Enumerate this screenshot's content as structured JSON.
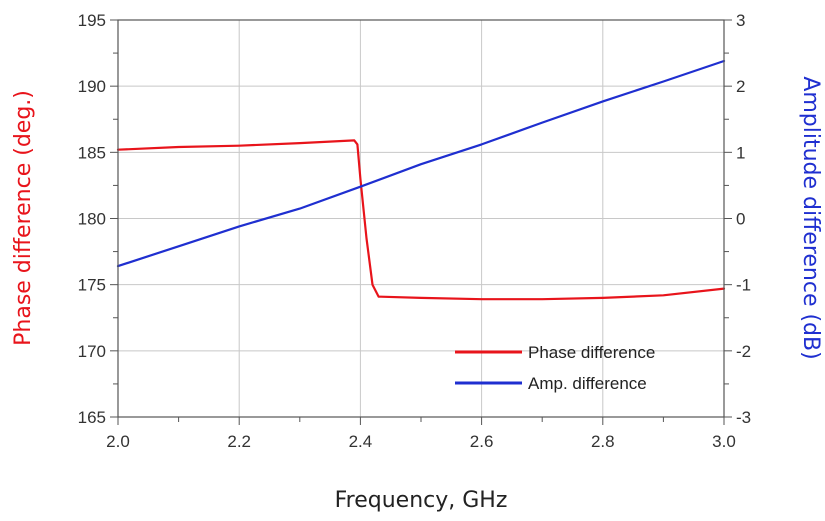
{
  "chart_data": {
    "type": "line",
    "title": "",
    "xlabel": "Frequency, GHz",
    "ylabel_left": "Phase difference (deg.)",
    "ylabel_right": "Amplitude difference (dB)",
    "xlim": [
      2.0,
      3.0
    ],
    "ylim_left": [
      165,
      195
    ],
    "ylim_right": [
      -3,
      3
    ],
    "x_ticks": [
      2.0,
      2.2,
      2.4,
      2.6,
      2.8,
      3.0
    ],
    "x_tick_labels": [
      "2.0",
      "2.2",
      "2.4",
      "2.6",
      "2.8",
      "3.0"
    ],
    "y_left_ticks": [
      165,
      170,
      175,
      180,
      185,
      190,
      195
    ],
    "y_left_tick_labels": [
      "165",
      "170",
      "175",
      "180",
      "185",
      "190",
      "195"
    ],
    "y_right_ticks": [
      -3,
      -2,
      -1,
      0,
      1,
      2,
      3
    ],
    "y_right_tick_labels": [
      "-3",
      "-2",
      "-1",
      "0",
      "1",
      "2",
      "3"
    ],
    "grid": true,
    "legend_position": "bottom-right",
    "series": [
      {
        "name": "Phase difference",
        "axis": "left",
        "color": "#e8141b",
        "x": [
          2.0,
          2.1,
          2.2,
          2.3,
          2.39,
          2.395,
          2.4,
          2.41,
          2.42,
          2.43,
          2.5,
          2.6,
          2.7,
          2.8,
          2.9,
          3.0
        ],
        "y": [
          185.2,
          185.4,
          185.5,
          185.7,
          185.9,
          185.6,
          183.0,
          178.5,
          175.0,
          174.1,
          174.0,
          173.9,
          173.9,
          174.0,
          174.2,
          174.7
        ]
      },
      {
        "name": "Amp. difference",
        "axis": "right",
        "color": "#1f2fd0",
        "x": [
          2.0,
          2.1,
          2.2,
          2.3,
          2.4,
          2.5,
          2.6,
          2.7,
          2.8,
          2.9,
          3.0
        ],
        "y": [
          -0.72,
          -0.42,
          -0.12,
          0.15,
          0.48,
          0.82,
          1.12,
          1.45,
          1.77,
          2.07,
          2.38
        ]
      }
    ]
  }
}
